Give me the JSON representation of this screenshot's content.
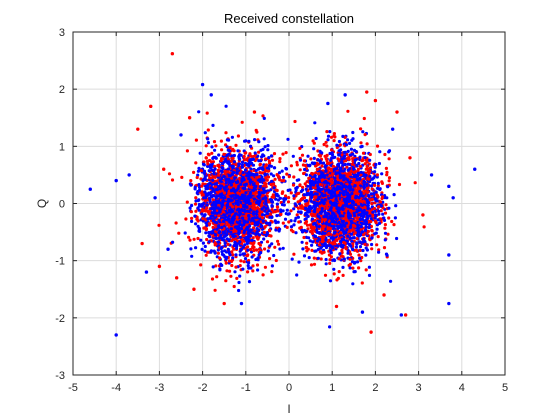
{
  "chart_data": {
    "type": "scatter",
    "title": "Received constellation",
    "xlabel": "I",
    "ylabel": "Q",
    "xlim": [
      -5,
      5
    ],
    "ylim": [
      -3,
      3
    ],
    "xticks": [
      -5,
      -4,
      -3,
      -2,
      -1,
      0,
      1,
      2,
      3,
      4,
      5
    ],
    "yticks": [
      -3,
      -2,
      -1,
      0,
      1,
      2,
      3
    ],
    "grid": true,
    "colors": {
      "series1": "#ff0000",
      "series2": "#0000ff",
      "grid": "#dcdcdc",
      "axis": "#262626"
    },
    "clusters": [
      {
        "center": [
          -1.2,
          0.0
        ],
        "spread": [
          0.45,
          0.45
        ]
      },
      {
        "center": [
          1.2,
          0.0
        ],
        "spread": [
          0.45,
          0.45
        ]
      }
    ],
    "series": [
      {
        "color": "#ff0000",
        "outliers": [
          [
            -2.7,
            2.62
          ],
          [
            -3.2,
            1.7
          ],
          [
            -3.5,
            1.3
          ],
          [
            -3.4,
            -0.7
          ],
          [
            -3.0,
            -1.1
          ],
          [
            1.8,
            1.95
          ],
          [
            2.0,
            1.8
          ],
          [
            1.9,
            -2.25
          ],
          [
            2.7,
            -1.95
          ],
          [
            -2.3,
            1.5
          ],
          [
            2.5,
            1.6
          ],
          [
            -2.6,
            -1.3
          ],
          [
            2.8,
            0.8
          ],
          [
            -2.9,
            0.6
          ],
          [
            3.1,
            -0.2
          ],
          [
            -1.5,
            -1.75
          ],
          [
            1.1,
            -1.8
          ],
          [
            2.2,
            -1.6
          ],
          [
            -2.2,
            -1.5
          ],
          [
            -0.8,
            1.6
          ]
        ]
      },
      {
        "color": "#0000ff",
        "outliers": [
          [
            -4.6,
            0.25
          ],
          [
            -4.0,
            -2.3
          ],
          [
            -4.0,
            0.4
          ],
          [
            -3.7,
            0.5
          ],
          [
            -3.3,
            -1.2
          ],
          [
            -2.0,
            2.08
          ],
          [
            -1.8,
            1.9
          ],
          [
            1.3,
            1.9
          ],
          [
            1.7,
            -1.9
          ],
          [
            2.6,
            -1.95
          ],
          [
            3.7,
            -1.75
          ],
          [
            4.3,
            0.6
          ],
          [
            3.7,
            0.3
          ],
          [
            3.7,
            -0.9
          ],
          [
            3.8,
            0.1
          ],
          [
            2.4,
            1.3
          ],
          [
            -2.8,
            -0.8
          ],
          [
            -2.5,
            1.2
          ],
          [
            -1.1,
            -1.75
          ],
          [
            0.9,
            1.75
          ],
          [
            3.3,
            0.5
          ],
          [
            -3.1,
            0.1
          ]
        ]
      }
    ]
  }
}
